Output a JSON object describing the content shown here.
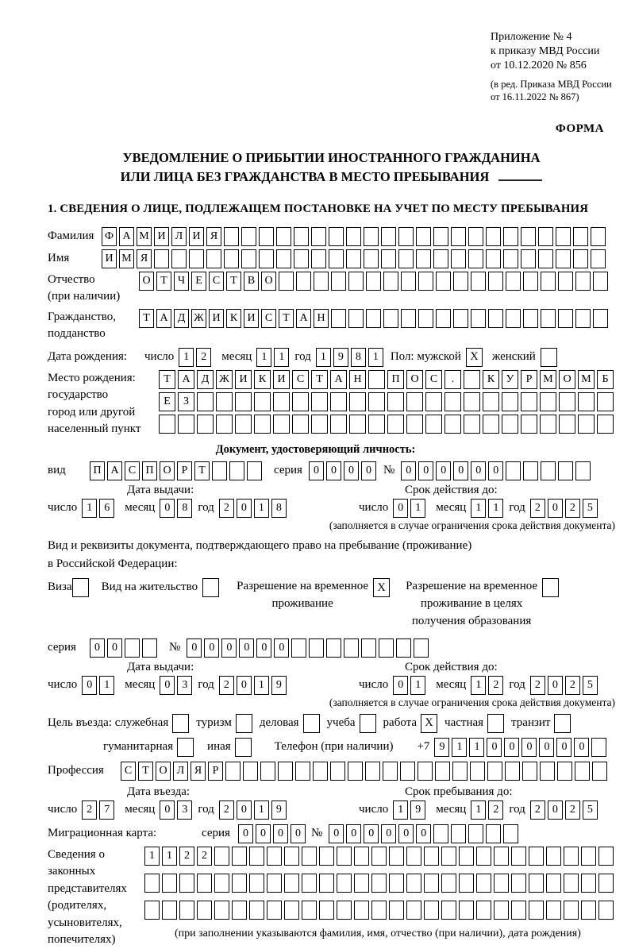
{
  "marks": {
    "check": "X"
  },
  "header": {
    "appendix_line1": "Приложение № 4",
    "appendix_line2": "к приказу МВД России",
    "appendix_line3": "от 10.12.2020 № 856",
    "edition_line1": "(в ред. Приказа МВД России",
    "edition_line2": "от 16.11.2022 № 867)",
    "form_label": "ФОРМА"
  },
  "title": {
    "line1": "УВЕДОМЛЕНИЕ О ПРИБЫТИИ ИНОСТРАННОГО ГРАЖДАНИНА",
    "line2": "ИЛИ ЛИЦА БЕЗ ГРАЖДАНСТВА В МЕСТО ПРЕБЫВАНИЯ"
  },
  "section1_heading": "1. СВЕДЕНИЯ О ЛИЦЕ, ПОДЛЕЖАЩЕМ ПОСТАНОВКЕ НА УЧЕТ ПО МЕСТУ ПРЕБЫВАНИЯ",
  "labels": {
    "surname": "Фамилия",
    "name": "Имя",
    "patronymic1": "Отчество",
    "patronymic2": "(при наличии)",
    "citizenship1": "Гражданство,",
    "citizenship2": "подданство",
    "birthdate": "Дата рождения:",
    "day": "число",
    "month": "месяц",
    "year": "год",
    "gender": "Пол: мужской",
    "female": "женский",
    "birthplace1": "Место рождения:",
    "birthplace2": "государство",
    "birthplace3": "город или другой",
    "birthplace4": "населенный пункт",
    "doc_header": "Документ, удостоверяющий личность:",
    "doc_kind": "вид",
    "series": "серия",
    "number": "№",
    "issue_date": "Дата выдачи:",
    "valid_until": "Срок действия до:",
    "validity_note": "(заполняется в случае ограничения срока действия документа)",
    "residence_line1": "Вид и реквизиты документа, подтверждающего право на пребывание (проживание)",
    "residence_line2": "в Российской Федерации:",
    "visa": "Виза",
    "residence_permit": "Вид на жительство",
    "temp_permit_l1": "Разрешение на временное",
    "temp_permit_l2": "проживание",
    "edu_permit_l1": "Разрешение на временное",
    "edu_permit_l2": "проживание в целях",
    "edu_permit_l3": "получения образования",
    "purpose": "Цель въезда: служебная",
    "tourism": "туризм",
    "business": "деловая",
    "study": "учеба",
    "work": "работа",
    "private": "частная",
    "transit": "транзит",
    "humanitarian": "гуманитарная",
    "other": "иная",
    "phone": "Телефон (при наличии)",
    "phone_prefix": "+7",
    "profession": "Профессия",
    "entry_date": "Дата въезда:",
    "stay_until": "Срок пребывания до:",
    "migration_card": "Миграционная карта:",
    "rep1": "Сведения о",
    "rep2": "законных",
    "rep3": "представителях",
    "rep4": "(родителях,",
    "rep5": "усыновителях,",
    "rep6": "попечителях)",
    "rep_note": "(при заполнении указываются фамилия, имя, отчество (при наличии), дата рождения)"
  },
  "cellrows": {
    "surname": {
      "value": "ФАМИЛИЯ",
      "cells": 29
    },
    "name": {
      "value": "ИМЯ",
      "cells": 29
    },
    "patronymic": {
      "value": "ОТЧЕСТВО",
      "cells": 27
    },
    "citizenship": {
      "value": "ТАДЖИКИСТАН",
      "cells": 27
    },
    "birth_day": {
      "value": "12",
      "cells": 2
    },
    "birth_month": {
      "value": "11",
      "cells": 2
    },
    "birth_year": {
      "value": "1981",
      "cells": 4
    },
    "birthplace_row1": {
      "value": "ТАДЖИКИСТАН ПОС. КУРМОМБ",
      "cells": 24
    },
    "birthplace_row2": {
      "value": "ЕЗ",
      "cells": 24
    },
    "birthplace_row3": {
      "value": "",
      "cells": 24
    },
    "doc_kind": {
      "value": "ПАСПОРТ",
      "cells": 10
    },
    "doc_series": {
      "value": "0000",
      "cells": 4
    },
    "doc_number": {
      "value": "000000",
      "cells": 11
    },
    "doc_issue_day": {
      "value": "16",
      "cells": 2
    },
    "doc_issue_month": {
      "value": "08",
      "cells": 2
    },
    "doc_issue_year": {
      "value": "2018",
      "cells": 4
    },
    "doc_valid_day": {
      "value": "01",
      "cells": 2
    },
    "doc_valid_month": {
      "value": "11",
      "cells": 2
    },
    "doc_valid_year": {
      "value": "2025",
      "cells": 4
    },
    "permit_series": {
      "value": "00",
      "cells": 4
    },
    "permit_number": {
      "value": "000000",
      "cells": 14
    },
    "permit_issue_day": {
      "value": "01",
      "cells": 2
    },
    "permit_issue_month": {
      "value": "03",
      "cells": 2
    },
    "permit_issue_year": {
      "value": "2019",
      "cells": 4
    },
    "permit_valid_day": {
      "value": "01",
      "cells": 2
    },
    "permit_valid_month": {
      "value": "12",
      "cells": 2
    },
    "permit_valid_year": {
      "value": "2025",
      "cells": 4
    },
    "phone_number": {
      "value": "911000000",
      "cells": 10
    },
    "profession": {
      "value": "СТОЛЯР",
      "cells": 28
    },
    "entry_day": {
      "value": "27",
      "cells": 2
    },
    "entry_month": {
      "value": "03",
      "cells": 2
    },
    "entry_year": {
      "value": "2019",
      "cells": 4
    },
    "stay_day": {
      "value": "19",
      "cells": 2
    },
    "stay_month": {
      "value": "12",
      "cells": 2
    },
    "stay_year": {
      "value": "2025",
      "cells": 4
    },
    "migration_series": {
      "value": "0000",
      "cells": 4
    },
    "migration_number": {
      "value": "000000",
      "cells": 11
    },
    "rep_row1": {
      "value": "1122",
      "cells": 27
    },
    "rep_row2": {
      "value": "",
      "cells": 27
    },
    "rep_row3": {
      "value": "",
      "cells": 27
    }
  },
  "checkboxes": {
    "male": true,
    "female": false,
    "visa": false,
    "residence_permit": false,
    "temp_permit": true,
    "edu_permit": false,
    "official": false,
    "tourism": false,
    "business": false,
    "study": false,
    "work": true,
    "private": false,
    "transit": false,
    "humanitarian": false,
    "other": false
  }
}
